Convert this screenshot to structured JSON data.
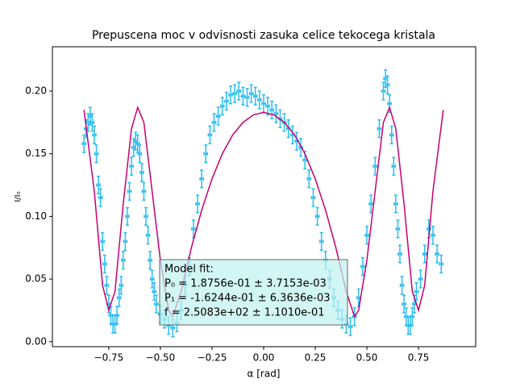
{
  "chart_data": {
    "type": "scatter",
    "title": "Prepuscena moc v odvisnosti zasuka celice tekocega kristala",
    "xlabel": "α [rad]",
    "ylabel": "I/I₀",
    "xlim": [
      -1.023,
      1.027
    ],
    "ylim": [
      -0.004,
      0.2354
    ],
    "xticks": [
      {
        "value": -0.75,
        "label": "−0.75"
      },
      {
        "value": -0.5,
        "label": "−0.50"
      },
      {
        "value": -0.25,
        "label": "−0.25"
      },
      {
        "value": 0,
        "label": "0.00"
      },
      {
        "value": 0.25,
        "label": "0.25"
      },
      {
        "value": 0.5,
        "label": "0.50"
      },
      {
        "value": 0.75,
        "label": "0.75"
      }
    ],
    "yticks": [
      {
        "value": 0,
        "label": "0.00"
      },
      {
        "value": 0.05,
        "label": "0.05"
      },
      {
        "value": 0.1,
        "label": "0.10"
      },
      {
        "value": 0.15,
        "label": "0.15"
      },
      {
        "value": 0.2,
        "label": "0.20"
      }
    ],
    "measurements": {
      "color": "#2bbcf0",
      "xerr": 0.008,
      "yerr": 0.007,
      "x": [
        -0.87,
        -0.86,
        -0.85,
        -0.84,
        -0.83,
        -0.82,
        -0.81,
        -0.8,
        -0.79,
        -0.78,
        -0.77,
        -0.76,
        -0.75,
        -0.74,
        -0.73,
        -0.72,
        -0.71,
        -0.7,
        -0.69,
        -0.68,
        -0.67,
        -0.66,
        -0.65,
        -0.64,
        -0.63,
        -0.62,
        -0.61,
        -0.6,
        -0.59,
        -0.58,
        -0.57,
        -0.56,
        -0.55,
        -0.54,
        -0.53,
        -0.52,
        -0.5,
        -0.48,
        -0.46,
        -0.44,
        -0.42,
        -0.4,
        -0.38,
        -0.36,
        -0.34,
        -0.32,
        -0.3,
        -0.28,
        -0.26,
        -0.24,
        -0.22,
        -0.2,
        -0.18,
        -0.16,
        -0.14,
        -0.12,
        -0.1,
        -0.08,
        -0.06,
        -0.04,
        -0.02,
        0,
        0.02,
        0.04,
        0.06,
        0.08,
        0.1,
        0.12,
        0.14,
        0.16,
        0.18,
        0.2,
        0.22,
        0.24,
        0.26,
        0.28,
        0.3,
        0.32,
        0.34,
        0.36,
        0.38,
        0.4,
        0.42,
        0.44,
        0.46,
        0.48,
        0.5,
        0.52,
        0.54,
        0.56,
        0.58,
        0.59,
        0.6,
        0.61,
        0.62,
        0.63,
        0.64,
        0.65,
        0.66,
        0.67,
        0.68,
        0.69,
        0.7,
        0.71,
        0.72,
        0.73,
        0.74,
        0.76,
        0.78,
        0.8,
        0.82,
        0.84,
        0.86
      ],
      "y": [
        0.158,
        0.17,
        0.175,
        0.18,
        0.175,
        0.165,
        0.15,
        0.125,
        0.115,
        0.08,
        0.062,
        0.045,
        0.03,
        0.021,
        0.014,
        0.014,
        0.021,
        0.035,
        0.045,
        0.065,
        0.08,
        0.1,
        0.12,
        0.14,
        0.155,
        0.16,
        0.158,
        0.15,
        0.135,
        0.12,
        0.1,
        0.085,
        0.065,
        0.05,
        0.04,
        0.03,
        0.022,
        0.018,
        0.013,
        0.011,
        0.015,
        0.025,
        0.045,
        0.06,
        0.09,
        0.11,
        0.13,
        0.15,
        0.165,
        0.175,
        0.18,
        0.188,
        0.192,
        0.197,
        0.198,
        0.2,
        0.196,
        0.195,
        0.198,
        0.196,
        0.193,
        0.19,
        0.188,
        0.185,
        0.182,
        0.178,
        0.175,
        0.17,
        0.165,
        0.16,
        0.155,
        0.145,
        0.13,
        0.115,
        0.1,
        0.08,
        0.065,
        0.05,
        0.035,
        0.025,
        0.018,
        0.014,
        0.012,
        0.02,
        0.035,
        0.06,
        0.085,
        0.11,
        0.14,
        0.17,
        0.2,
        0.21,
        0.205,
        0.19,
        0.165,
        0.14,
        0.11,
        0.09,
        0.07,
        0.045,
        0.03,
        0.02,
        0.013,
        0.013,
        0.02,
        0.03,
        0.04,
        0.05,
        0.07,
        0.09,
        0.085,
        0.07,
        0.062
      ]
    },
    "fit": {
      "type": "line",
      "color": "#c8006e",
      "x": [
        -0.87,
        -0.82,
        -0.78,
        -0.75,
        -0.72,
        -0.68,
        -0.64,
        -0.61,
        -0.58,
        -0.54,
        -0.5,
        -0.46,
        -0.44,
        -0.4,
        -0.35,
        -0.3,
        -0.25,
        -0.2,
        -0.15,
        -0.1,
        -0.05,
        0,
        0.05,
        0.1,
        0.15,
        0.2,
        0.25,
        0.3,
        0.35,
        0.4,
        0.44,
        0.46,
        0.5,
        0.54,
        0.58,
        0.61,
        0.64,
        0.68,
        0.72,
        0.75,
        0.78,
        0.82,
        0.87
      ],
      "y": [
        0.185,
        0.12,
        0.045,
        0.025,
        0.04,
        0.11,
        0.17,
        0.187,
        0.175,
        0.12,
        0.065,
        0.025,
        0.02,
        0.04,
        0.075,
        0.105,
        0.13,
        0.15,
        0.165,
        0.175,
        0.181,
        0.183,
        0.181,
        0.175,
        0.165,
        0.15,
        0.13,
        0.105,
        0.075,
        0.04,
        0.02,
        0.025,
        0.065,
        0.12,
        0.175,
        0.187,
        0.17,
        0.11,
        0.04,
        0.025,
        0.045,
        0.12,
        0.185
      ]
    },
    "annotation": [
      "Model fit:",
      "P₀ = 1.8756e-01 ± 3.7153e-03",
      "P₁ = -1.6244e-01 ± 6.3636e-03",
      "f = 2.5083e+02 ± 1.1010e-01"
    ]
  }
}
